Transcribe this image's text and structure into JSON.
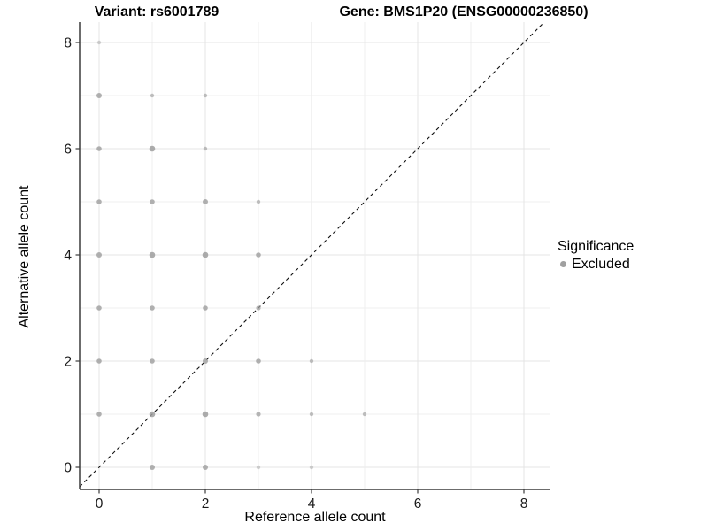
{
  "titles": {
    "variant": "Variant: rs6001789",
    "gene": "Gene: BMS1P20 (ENSG00000236850)"
  },
  "axes": {
    "x_label": "Reference allele count",
    "y_label": "Alternative allele count",
    "x_ticks": [
      0,
      2,
      4,
      6,
      8
    ],
    "y_ticks": [
      0,
      2,
      4,
      6,
      8
    ]
  },
  "legend": {
    "title": "Significance",
    "items": [
      {
        "label": "Excluded",
        "color": "#a0a0a0"
      }
    ]
  },
  "colors": {
    "point": "#9e9e9e",
    "grid_major": "#e4e4e4",
    "grid_minor": "#efefef",
    "axis_line": "#3c3c3c",
    "identity_line": "#111111",
    "background": "#ffffff"
  },
  "chart_data": {
    "type": "scatter",
    "title_left": "Variant: rs6001789",
    "title_right": "Gene: BMS1P20 (ENSG00000236850)",
    "xlabel": "Reference allele count",
    "ylabel": "Alternative allele count",
    "xlim": [
      -0.37,
      8.5
    ],
    "ylim": [
      -0.42,
      8.8
    ],
    "x_ticks": [
      0,
      2,
      4,
      6,
      8
    ],
    "y_ticks": [
      0,
      2,
      4,
      6,
      8
    ],
    "grid": "on",
    "grid_every": 1,
    "legend_position": "right",
    "identity_line": {
      "type": "abline",
      "slope": 1,
      "intercept": 0,
      "style": "dashed",
      "color": "#111111"
    },
    "series": [
      {
        "name": "Excluded",
        "color": "#9e9e9e",
        "points": [
          {
            "x": 0,
            "y": 1,
            "r": 2.8,
            "o": 0.8
          },
          {
            "x": 0,
            "y": 2,
            "r": 2.8,
            "o": 0.8
          },
          {
            "x": 0,
            "y": 3,
            "r": 2.8,
            "o": 0.8
          },
          {
            "x": 0,
            "y": 4,
            "r": 3.0,
            "o": 0.8
          },
          {
            "x": 0,
            "y": 5,
            "r": 2.8,
            "o": 0.8
          },
          {
            "x": 0,
            "y": 6,
            "r": 2.8,
            "o": 0.8
          },
          {
            "x": 0,
            "y": 7,
            "r": 3.0,
            "o": 0.8
          },
          {
            "x": 0,
            "y": 8,
            "r": 2.2,
            "o": 0.45
          },
          {
            "x": 1,
            "y": 0,
            "r": 3.0,
            "o": 0.8
          },
          {
            "x": 1,
            "y": 1,
            "r": 3.3,
            "o": 0.85
          },
          {
            "x": 1,
            "y": 2,
            "r": 2.8,
            "o": 0.8
          },
          {
            "x": 1,
            "y": 3,
            "r": 2.8,
            "o": 0.8
          },
          {
            "x": 1,
            "y": 4,
            "r": 3.3,
            "o": 0.85
          },
          {
            "x": 1,
            "y": 5,
            "r": 2.8,
            "o": 0.8
          },
          {
            "x": 1,
            "y": 6,
            "r": 3.3,
            "o": 0.85
          },
          {
            "x": 1,
            "y": 7,
            "r": 2.2,
            "o": 0.65
          },
          {
            "x": 2,
            "y": 0,
            "r": 3.0,
            "o": 0.8
          },
          {
            "x": 2,
            "y": 1,
            "r": 3.3,
            "o": 0.85
          },
          {
            "x": 2,
            "y": 2,
            "r": 3.0,
            "o": 0.8
          },
          {
            "x": 2,
            "y": 3,
            "r": 2.8,
            "o": 0.8
          },
          {
            "x": 2,
            "y": 4,
            "r": 3.3,
            "o": 0.85
          },
          {
            "x": 2,
            "y": 5,
            "r": 3.0,
            "o": 0.8
          },
          {
            "x": 2,
            "y": 6,
            "r": 2.2,
            "o": 0.65
          },
          {
            "x": 2,
            "y": 7,
            "r": 2.2,
            "o": 0.65
          },
          {
            "x": 3,
            "y": 0,
            "r": 2.2,
            "o": 0.45
          },
          {
            "x": 3,
            "y": 1,
            "r": 2.6,
            "o": 0.75
          },
          {
            "x": 3,
            "y": 2,
            "r": 2.8,
            "o": 0.8
          },
          {
            "x": 3,
            "y": 3,
            "r": 2.6,
            "o": 0.75
          },
          {
            "x": 3,
            "y": 4,
            "r": 2.8,
            "o": 0.8
          },
          {
            "x": 3,
            "y": 5,
            "r": 2.2,
            "o": 0.65
          },
          {
            "x": 4,
            "y": 0,
            "r": 2.2,
            "o": 0.45
          },
          {
            "x": 4,
            "y": 1,
            "r": 2.2,
            "o": 0.65
          },
          {
            "x": 4,
            "y": 2,
            "r": 2.2,
            "o": 0.65
          },
          {
            "x": 5,
            "y": 1,
            "r": 2.2,
            "o": 0.65
          }
        ]
      }
    ]
  }
}
